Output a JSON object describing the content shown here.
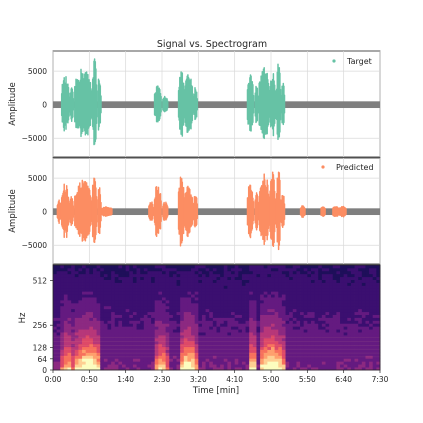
{
  "chart_data": [
    {
      "type": "scatter",
      "title": "Signal vs. Spectrogram",
      "ylabel": "Amplitude",
      "ylim": [
        -7800,
        8000
      ],
      "yticks": [
        5000,
        0,
        -5000
      ],
      "ytick_labels": [
        "5000",
        "0",
        "−5000"
      ],
      "grid": true,
      "legend": {
        "placement": "top-right",
        "entries": [
          "Target"
        ]
      },
      "series": [
        {
          "name": "Target",
          "color": "#66c2a5",
          "noise_color": "#7f7f7f",
          "bursts": [
            {
              "start": 0.2,
              "end": 0.37,
              "amp": 4000
            },
            {
              "start": 0.39,
              "end": 0.47,
              "amp": 2200
            },
            {
              "start": 0.5,
              "end": 0.9,
              "amp": 5200
            },
            {
              "start": 0.91,
              "end": 1.0,
              "amp": 7500
            },
            {
              "start": 1.03,
              "end": 1.1,
              "amp": 4500
            },
            {
              "start": 2.33,
              "end": 2.48,
              "amp": 2600
            },
            {
              "start": 2.52,
              "end": 2.63,
              "amp": 1000
            },
            {
              "start": 2.88,
              "end": 3.01,
              "amp": 4800
            },
            {
              "start": 3.02,
              "end": 3.21,
              "amp": 4400
            },
            {
              "start": 3.23,
              "end": 3.31,
              "amp": 2400
            },
            {
              "start": 4.46,
              "end": 4.6,
              "amp": 4600
            },
            {
              "start": 4.64,
              "end": 4.7,
              "amp": 3600
            },
            {
              "start": 4.73,
              "end": 4.97,
              "amp": 5600
            },
            {
              "start": 4.98,
              "end": 5.1,
              "amp": 5000
            },
            {
              "start": 5.13,
              "end": 5.22,
              "amp": 6200
            },
            {
              "start": 5.24,
              "end": 5.31,
              "amp": 3200
            }
          ]
        }
      ]
    },
    {
      "type": "scatter",
      "ylabel": "Amplitude",
      "ylim": [
        -7800,
        8000
      ],
      "yticks": [
        5000,
        0,
        -5000
      ],
      "ytick_labels": [
        "5000",
        "0",
        "−5000"
      ],
      "grid": true,
      "legend": {
        "placement": "top-right",
        "entries": [
          "Predicted"
        ]
      },
      "series": [
        {
          "name": "Predicted",
          "color": "#fc8d62",
          "noise_color": "#7f7f7f",
          "bursts": [
            {
              "start": 0.1,
              "end": 0.18,
              "amp": 1500
            },
            {
              "start": 0.2,
              "end": 0.37,
              "amp": 4000
            },
            {
              "start": 0.39,
              "end": 0.47,
              "amp": 2400
            },
            {
              "start": 0.5,
              "end": 0.9,
              "amp": 4400
            },
            {
              "start": 0.91,
              "end": 1.0,
              "amp": 7000
            },
            {
              "start": 1.03,
              "end": 1.1,
              "amp": 4600
            },
            {
              "start": 1.12,
              "end": 1.35,
              "amp": 400
            },
            {
              "start": 2.2,
              "end": 2.3,
              "amp": 1300
            },
            {
              "start": 2.33,
              "end": 2.48,
              "amp": 4000
            },
            {
              "start": 2.52,
              "end": 2.63,
              "amp": 1200
            },
            {
              "start": 2.88,
              "end": 3.01,
              "amp": 5200
            },
            {
              "start": 3.02,
              "end": 3.21,
              "amp": 3600
            },
            {
              "start": 3.23,
              "end": 3.31,
              "amp": 2400
            },
            {
              "start": 4.46,
              "end": 4.6,
              "amp": 4000
            },
            {
              "start": 4.64,
              "end": 4.7,
              "amp": 3700
            },
            {
              "start": 4.73,
              "end": 4.97,
              "amp": 5400
            },
            {
              "start": 4.98,
              "end": 5.1,
              "amp": 6000
            },
            {
              "start": 5.13,
              "end": 5.22,
              "amp": 6400
            },
            {
              "start": 5.24,
              "end": 5.31,
              "amp": 2800
            },
            {
              "start": 5.68,
              "end": 5.78,
              "amp": 600
            },
            {
              "start": 6.15,
              "end": 6.24,
              "amp": 500
            },
            {
              "start": 6.42,
              "end": 6.56,
              "amp": 500
            },
            {
              "start": 6.58,
              "end": 6.72,
              "amp": 500
            }
          ]
        }
      ]
    },
    {
      "type": "heatmap",
      "ylabel": "Hz",
      "xlabel": "Time [min]",
      "xlim": [
        0,
        7.5
      ],
      "ylim": [
        0,
        600
      ],
      "xticks": [
        0,
        0.8333,
        1.6667,
        2.5,
        3.3333,
        4.1667,
        5.0,
        5.8333,
        6.6667,
        7.5
      ],
      "xtick_labels": [
        "0:00",
        "0:50",
        "1:40",
        "2:30",
        "3:20",
        "4:10",
        "5:00",
        "5:50",
        "6:40",
        "7:30"
      ],
      "yticks": [
        0,
        64,
        128,
        256,
        512
      ],
      "ytick_labels": [
        "0",
        "64",
        "128",
        "256",
        "512"
      ],
      "colormap": [
        "#0d0887",
        "#1e0f5a",
        "#3b0f70",
        "#641a80",
        "#8c2981",
        "#b73779",
        "#de4968",
        "#f7705c",
        "#fe9f6d",
        "#fecf92",
        "#fcfdbf"
      ],
      "hotspots": [
        {
          "start": 0.2,
          "end": 0.47,
          "level": 0.6
        },
        {
          "start": 0.5,
          "end": 1.1,
          "level": 0.9
        },
        {
          "start": 2.33,
          "end": 2.63,
          "level": 0.6
        },
        {
          "start": 2.88,
          "end": 3.31,
          "level": 0.8
        },
        {
          "start": 4.46,
          "end": 4.7,
          "level": 0.65
        },
        {
          "start": 4.73,
          "end": 5.31,
          "level": 0.9
        }
      ]
    }
  ]
}
